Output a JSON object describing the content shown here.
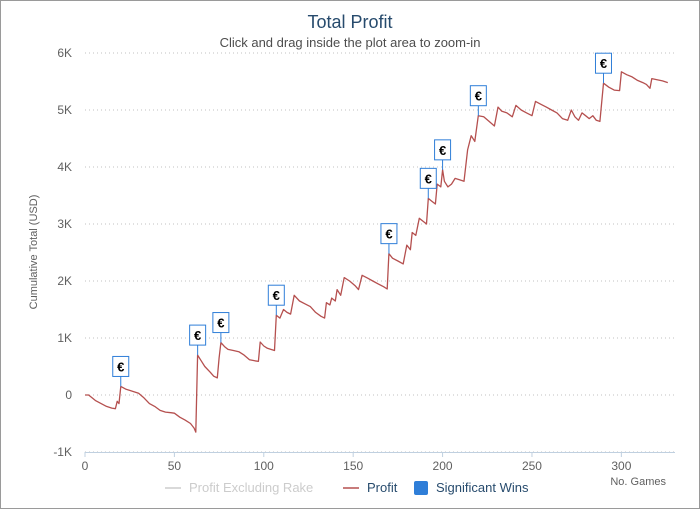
{
  "chart_data": {
    "type": "line",
    "title": "Total Profit",
    "subtitle": "Click and drag inside the plot area to zoom-in",
    "xlabel": "No. Games",
    "ylabel": "Cumulative Total (USD)",
    "xlim": [
      0,
      330
    ],
    "ylim": [
      -1000,
      6000
    ],
    "x_ticks": [
      0,
      50,
      100,
      150,
      200,
      250,
      300
    ],
    "y_ticks": [
      -1000,
      0,
      1000,
      2000,
      3000,
      4000,
      5000,
      6000
    ],
    "y_tick_labels": [
      "-1K",
      "0",
      "1K",
      "2K",
      "3K",
      "4K",
      "5K",
      "6K"
    ],
    "grid": "horizontal-dotted",
    "legend_placement": "bottom-center",
    "colors": {
      "profit": "#b5504f",
      "profit_excluding_rake": "#cccccc",
      "significant_wins": "#2f7ed8",
      "title": "#274b6d"
    },
    "series": [
      {
        "name": "Profit Excluding Rake",
        "visible": false,
        "values": []
      },
      {
        "name": "Profit",
        "points": [
          [
            0,
            0
          ],
          [
            2,
            0
          ],
          [
            4,
            -50
          ],
          [
            6,
            -100
          ],
          [
            9,
            -150
          ],
          [
            12,
            -200
          ],
          [
            15,
            -230
          ],
          [
            17,
            -240
          ],
          [
            18,
            -110
          ],
          [
            19,
            -150
          ],
          [
            20,
            150
          ],
          [
            23,
            100
          ],
          [
            25,
            80
          ],
          [
            28,
            50
          ],
          [
            30,
            30
          ],
          [
            33,
            -50
          ],
          [
            36,
            -150
          ],
          [
            39,
            -200
          ],
          [
            42,
            -270
          ],
          [
            45,
            -300
          ],
          [
            48,
            -310
          ],
          [
            50,
            -320
          ],
          [
            53,
            -390
          ],
          [
            56,
            -440
          ],
          [
            59,
            -500
          ],
          [
            61,
            -580
          ],
          [
            62,
            -650
          ],
          [
            63,
            700
          ],
          [
            65,
            600
          ],
          [
            67,
            500
          ],
          [
            70,
            400
          ],
          [
            72,
            330
          ],
          [
            74,
            300
          ],
          [
            75,
            650
          ],
          [
            76,
            920
          ],
          [
            78,
            850
          ],
          [
            80,
            800
          ],
          [
            83,
            780
          ],
          [
            86,
            760
          ],
          [
            89,
            700
          ],
          [
            92,
            620
          ],
          [
            95,
            600
          ],
          [
            97,
            590
          ],
          [
            98,
            930
          ],
          [
            100,
            860
          ],
          [
            102,
            820
          ],
          [
            104,
            800
          ],
          [
            106,
            780
          ],
          [
            107,
            1400
          ],
          [
            109,
            1350
          ],
          [
            111,
            1500
          ],
          [
            113,
            1450
          ],
          [
            115,
            1420
          ],
          [
            117,
            1750
          ],
          [
            120,
            1650
          ],
          [
            123,
            1600
          ],
          [
            126,
            1550
          ],
          [
            129,
            1450
          ],
          [
            132,
            1380
          ],
          [
            134,
            1350
          ],
          [
            135,
            1620
          ],
          [
            137,
            1580
          ],
          [
            138,
            1700
          ],
          [
            140,
            1650
          ],
          [
            141,
            1850
          ],
          [
            143,
            1750
          ],
          [
            145,
            2060
          ],
          [
            148,
            2000
          ],
          [
            151,
            1920
          ],
          [
            153,
            1850
          ],
          [
            155,
            2100
          ],
          [
            158,
            2050
          ],
          [
            161,
            2000
          ],
          [
            164,
            1950
          ],
          [
            167,
            1900
          ],
          [
            169,
            1860
          ],
          [
            170,
            2480
          ],
          [
            172,
            2400
          ],
          [
            175,
            2350
          ],
          [
            178,
            2300
          ],
          [
            180,
            2630
          ],
          [
            182,
            2550
          ],
          [
            183,
            2850
          ],
          [
            185,
            2800
          ],
          [
            187,
            3100
          ],
          [
            189,
            3050
          ],
          [
            191,
            3000
          ],
          [
            192,
            3450
          ],
          [
            194,
            3400
          ],
          [
            196,
            3350
          ],
          [
            197,
            3700
          ],
          [
            199,
            3650
          ],
          [
            200,
            3950
          ],
          [
            201,
            3750
          ],
          [
            203,
            3650
          ],
          [
            205,
            3700
          ],
          [
            207,
            3800
          ],
          [
            209,
            3780
          ],
          [
            212,
            3750
          ],
          [
            214,
            4300
          ],
          [
            216,
            4550
          ],
          [
            218,
            4450
          ],
          [
            220,
            4900
          ],
          [
            223,
            4880
          ],
          [
            226,
            4800
          ],
          [
            229,
            4720
          ],
          [
            231,
            5050
          ],
          [
            233,
            4980
          ],
          [
            236,
            4950
          ],
          [
            239,
            4880
          ],
          [
            241,
            5080
          ],
          [
            244,
            5000
          ],
          [
            247,
            4950
          ],
          [
            250,
            4900
          ],
          [
            252,
            5150
          ],
          [
            255,
            5100
          ],
          [
            258,
            5050
          ],
          [
            261,
            5000
          ],
          [
            264,
            4950
          ],
          [
            267,
            4850
          ],
          [
            270,
            4820
          ],
          [
            272,
            5000
          ],
          [
            274,
            4880
          ],
          [
            276,
            4820
          ],
          [
            278,
            4950
          ],
          [
            280,
            4900
          ],
          [
            282,
            4850
          ],
          [
            284,
            4900
          ],
          [
            286,
            4820
          ],
          [
            288,
            4800
          ],
          [
            290,
            5470
          ],
          [
            293,
            5400
          ],
          [
            296,
            5350
          ],
          [
            299,
            5340
          ],
          [
            300,
            5670
          ],
          [
            303,
            5620
          ],
          [
            306,
            5580
          ],
          [
            309,
            5520
          ],
          [
            312,
            5480
          ],
          [
            314,
            5450
          ],
          [
            316,
            5380
          ],
          [
            317,
            5550
          ],
          [
            320,
            5530
          ],
          [
            323,
            5510
          ],
          [
            326,
            5480
          ]
        ]
      }
    ],
    "significant_wins": {
      "name": "Significant Wins",
      "flag_label": "€",
      "points": [
        [
          20,
          150
        ],
        [
          63,
          700
        ],
        [
          76,
          920
        ],
        [
          107,
          1400
        ],
        [
          170,
          2480
        ],
        [
          192,
          3450
        ],
        [
          200,
          3950
        ],
        [
          220,
          4900
        ],
        [
          290,
          5470
        ]
      ]
    }
  }
}
